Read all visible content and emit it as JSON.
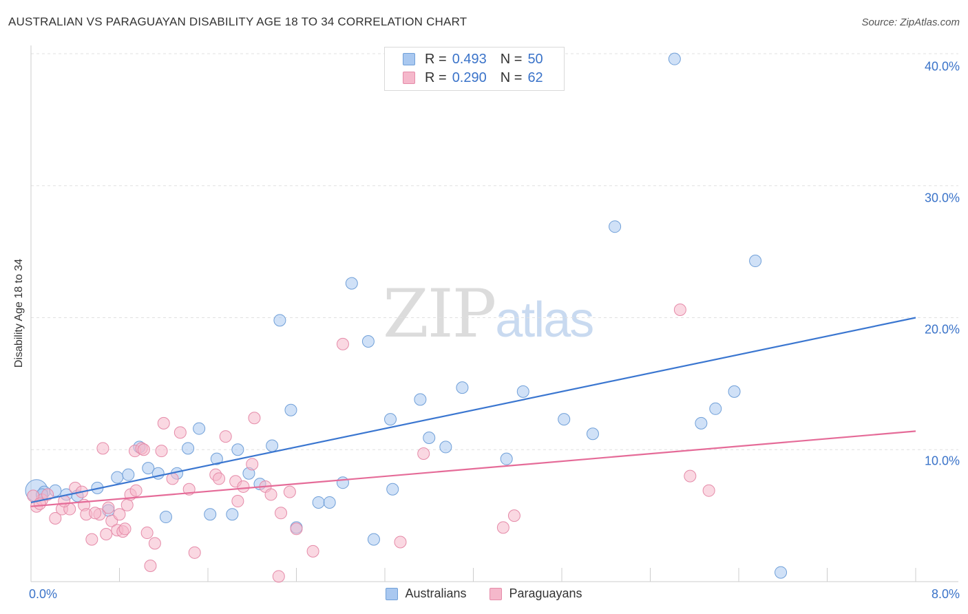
{
  "title": "AUSTRALIAN VS PARAGUAYAN DISABILITY AGE 18 TO 34 CORRELATION CHART",
  "source": "Source: ZipAtlas.com",
  "watermark": {
    "part1": "ZIP",
    "part2": "atlas"
  },
  "legend_top": {
    "rows": [
      {
        "r_label": "R = ",
        "r_value": "0.493",
        "n_label": "N = ",
        "n_value": "50"
      },
      {
        "r_label": "R = ",
        "r_value": "0.290",
        "n_label": "N = ",
        "n_value": "62"
      }
    ]
  },
  "legend_bottom": [
    "Australians",
    "Paraguayans"
  ],
  "colors": {
    "australians_fill": "#a9c8f0",
    "australians_stroke": "#6f9fd8",
    "australians_line": "#3a76d0",
    "paraguayans_fill": "#f5b8cb",
    "paraguayans_stroke": "#e58aa8",
    "paraguayans_line": "#e56b98",
    "grid": "#e0e0e0",
    "axis_text": "#3a73c9"
  },
  "chart_data": {
    "type": "scatter",
    "title": "AUSTRALIAN VS PARAGUAYAN DISABILITY AGE 18 TO 34 CORRELATION CHART",
    "xlabel": "",
    "ylabel": "Disability Age 18 to 34",
    "xlim": [
      0,
      8
    ],
    "ylim": [
      0,
      40
    ],
    "x_tick_labels": [
      "0.0%",
      "8.0%"
    ],
    "y_ticks": [
      10,
      20,
      30,
      40
    ],
    "y_tick_labels": [
      "10.0%",
      "20.0%",
      "30.0%",
      "40.0%"
    ],
    "grid": true,
    "legend_position": "top-center",
    "series": [
      {
        "name": "Australians",
        "r": 0.493,
        "n": 50,
        "trend": {
          "x": [
            0,
            8
          ],
          "y": [
            6.0,
            20.0
          ]
        },
        "points": [
          {
            "x": 0.05,
            "y": 6.9,
            "big": true
          },
          {
            "x": 0.12,
            "y": 6.8
          },
          {
            "x": 0.22,
            "y": 6.9
          },
          {
            "x": 0.32,
            "y": 6.6
          },
          {
            "x": 0.42,
            "y": 6.5
          },
          {
            "x": 0.6,
            "y": 7.1
          },
          {
            "x": 0.7,
            "y": 5.4
          },
          {
            "x": 0.78,
            "y": 7.9
          },
          {
            "x": 0.88,
            "y": 8.1
          },
          {
            "x": 0.98,
            "y": 10.2
          },
          {
            "x": 1.06,
            "y": 8.6
          },
          {
            "x": 1.15,
            "y": 8.2
          },
          {
            "x": 1.22,
            "y": 4.9
          },
          {
            "x": 1.32,
            "y": 8.2
          },
          {
            "x": 1.42,
            "y": 10.1
          },
          {
            "x": 1.52,
            "y": 11.6
          },
          {
            "x": 1.62,
            "y": 5.1
          },
          {
            "x": 1.68,
            "y": 9.3
          },
          {
            "x": 1.82,
            "y": 5.1
          },
          {
            "x": 1.87,
            "y": 10.0
          },
          {
            "x": 1.97,
            "y": 8.2
          },
          {
            "x": 2.07,
            "y": 7.4
          },
          {
            "x": 2.18,
            "y": 10.3
          },
          {
            "x": 2.25,
            "y": 19.8
          },
          {
            "x": 2.35,
            "y": 13.0
          },
          {
            "x": 2.4,
            "y": 4.1
          },
          {
            "x": 2.6,
            "y": 6.0
          },
          {
            "x": 2.7,
            "y": 6.0
          },
          {
            "x": 2.82,
            "y": 7.5
          },
          {
            "x": 2.9,
            "y": 22.6
          },
          {
            "x": 3.05,
            "y": 18.2
          },
          {
            "x": 3.1,
            "y": 3.2
          },
          {
            "x": 3.25,
            "y": 12.3
          },
          {
            "x": 3.27,
            "y": 7.0
          },
          {
            "x": 3.52,
            "y": 13.8
          },
          {
            "x": 3.6,
            "y": 10.9
          },
          {
            "x": 3.75,
            "y": 10.2
          },
          {
            "x": 3.9,
            "y": 14.7
          },
          {
            "x": 4.3,
            "y": 9.3
          },
          {
            "x": 4.45,
            "y": 14.4
          },
          {
            "x": 4.82,
            "y": 12.3
          },
          {
            "x": 5.08,
            "y": 11.2
          },
          {
            "x": 5.28,
            "y": 26.9
          },
          {
            "x": 5.82,
            "y": 39.6
          },
          {
            "x": 6.06,
            "y": 12.0
          },
          {
            "x": 6.19,
            "y": 13.1
          },
          {
            "x": 6.36,
            "y": 14.4
          },
          {
            "x": 6.55,
            "y": 24.3
          },
          {
            "x": 6.78,
            "y": 0.7
          },
          {
            "x": 0.1,
            "y": 6.6
          }
        ]
      },
      {
        "name": "Paraguayans",
        "r": 0.29,
        "n": 62,
        "trend": {
          "x": [
            0,
            8
          ],
          "y": [
            5.7,
            11.4
          ]
        },
        "points": [
          {
            "x": 0.05,
            "y": 5.7
          },
          {
            "x": 0.1,
            "y": 6.2
          },
          {
            "x": 0.15,
            "y": 6.6
          },
          {
            "x": 0.22,
            "y": 4.8
          },
          {
            "x": 0.28,
            "y": 5.5
          },
          {
            "x": 0.35,
            "y": 5.5
          },
          {
            "x": 0.4,
            "y": 7.1
          },
          {
            "x": 0.48,
            "y": 5.8
          },
          {
            "x": 0.5,
            "y": 5.1
          },
          {
            "x": 0.55,
            "y": 3.2
          },
          {
            "x": 0.62,
            "y": 5.1
          },
          {
            "x": 0.65,
            "y": 10.1
          },
          {
            "x": 0.68,
            "y": 3.6
          },
          {
            "x": 0.7,
            "y": 5.6
          },
          {
            "x": 0.73,
            "y": 4.6
          },
          {
            "x": 0.78,
            "y": 3.9
          },
          {
            "x": 0.8,
            "y": 5.1
          },
          {
            "x": 0.83,
            "y": 3.8
          },
          {
            "x": 0.85,
            "y": 4.0
          },
          {
            "x": 0.87,
            "y": 5.8
          },
          {
            "x": 0.9,
            "y": 6.6
          },
          {
            "x": 0.94,
            "y": 9.9
          },
          {
            "x": 0.95,
            "y": 6.9
          },
          {
            "x": 1.0,
            "y": 10.1
          },
          {
            "x": 1.02,
            "y": 10.0
          },
          {
            "x": 1.05,
            "y": 3.7
          },
          {
            "x": 1.08,
            "y": 1.2
          },
          {
            "x": 1.12,
            "y": 2.9
          },
          {
            "x": 1.18,
            "y": 9.9
          },
          {
            "x": 1.2,
            "y": 12.0
          },
          {
            "x": 1.28,
            "y": 7.8
          },
          {
            "x": 1.35,
            "y": 11.3
          },
          {
            "x": 1.43,
            "y": 7.0
          },
          {
            "x": 1.48,
            "y": 2.2
          },
          {
            "x": 1.67,
            "y": 8.1
          },
          {
            "x": 1.7,
            "y": 7.8
          },
          {
            "x": 1.76,
            "y": 11.0
          },
          {
            "x": 1.85,
            "y": 7.6
          },
          {
            "x": 1.87,
            "y": 6.1
          },
          {
            "x": 1.92,
            "y": 7.2
          },
          {
            "x": 2.0,
            "y": 8.9
          },
          {
            "x": 2.02,
            "y": 12.4
          },
          {
            "x": 2.12,
            "y": 7.2
          },
          {
            "x": 2.17,
            "y": 6.6
          },
          {
            "x": 2.24,
            "y": 0.4
          },
          {
            "x": 2.26,
            "y": 5.2
          },
          {
            "x": 2.34,
            "y": 6.8
          },
          {
            "x": 2.4,
            "y": 4.0
          },
          {
            "x": 2.55,
            "y": 2.3
          },
          {
            "x": 2.82,
            "y": 18.0
          },
          {
            "x": 3.34,
            "y": 3.0
          },
          {
            "x": 3.55,
            "y": 9.7
          },
          {
            "x": 4.27,
            "y": 4.1
          },
          {
            "x": 4.37,
            "y": 5.0
          },
          {
            "x": 5.87,
            "y": 20.6
          },
          {
            "x": 5.96,
            "y": 8.0
          },
          {
            "x": 6.13,
            "y": 6.9
          },
          {
            "x": 0.02,
            "y": 6.5
          },
          {
            "x": 0.08,
            "y": 5.9
          },
          {
            "x": 0.3,
            "y": 6.1
          },
          {
            "x": 0.46,
            "y": 6.8
          },
          {
            "x": 0.58,
            "y": 5.2
          }
        ]
      }
    ]
  }
}
